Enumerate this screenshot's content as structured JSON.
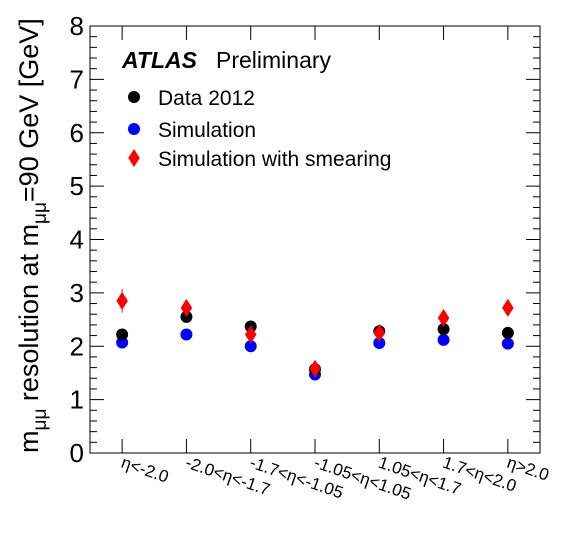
{
  "chart_data": {
    "type": "scatter",
    "ylabel_main": "m",
    "ylabel_main_sub": "μμ",
    "ylabel_mid": " resolution at m",
    "ylabel_mid_sub": "μμ",
    "ylabel_end": "=90 GeV [GeV]",
    "ylim": [
      0,
      8
    ],
    "yticks": [
      "0",
      "1",
      "2",
      "3",
      "4",
      "5",
      "6",
      "7",
      "8"
    ],
    "categories": [
      "η<-2.0",
      "-2.0<η<-1.7",
      "-1.7<η<-1.05",
      "-1.05<η<1.05",
      "1.05<η<1.7",
      "1.7<η<2.0",
      "η>2.0"
    ],
    "grid": false,
    "legend_position": "top-left",
    "atlas_label": "ATLAS",
    "atlas_sublabel": "Preliminary",
    "series": [
      {
        "name": "Data 2012",
        "marker": "circle",
        "color": "#000000",
        "values": [
          2.22,
          2.55,
          2.37,
          1.57,
          2.28,
          2.32,
          2.25
        ],
        "err": [
          0.04,
          0.04,
          0.04,
          0.03,
          0.03,
          0.04,
          0.04
        ]
      },
      {
        "name": "Simulation",
        "marker": "circle",
        "color": "#0000ff",
        "values": [
          2.07,
          2.22,
          2.0,
          1.47,
          2.06,
          2.12,
          2.05
        ],
        "err": [
          0.08,
          0.07,
          0.06,
          0.04,
          0.05,
          0.07,
          0.08
        ]
      },
      {
        "name": "Simulation with smearing",
        "marker": "diamond",
        "color": "#ff0000",
        "values": [
          2.85,
          2.72,
          2.22,
          1.58,
          2.25,
          2.53,
          2.72
        ],
        "err": [
          0.22,
          0.15,
          0.1,
          0.05,
          0.07,
          0.12,
          0.16
        ]
      }
    ]
  }
}
